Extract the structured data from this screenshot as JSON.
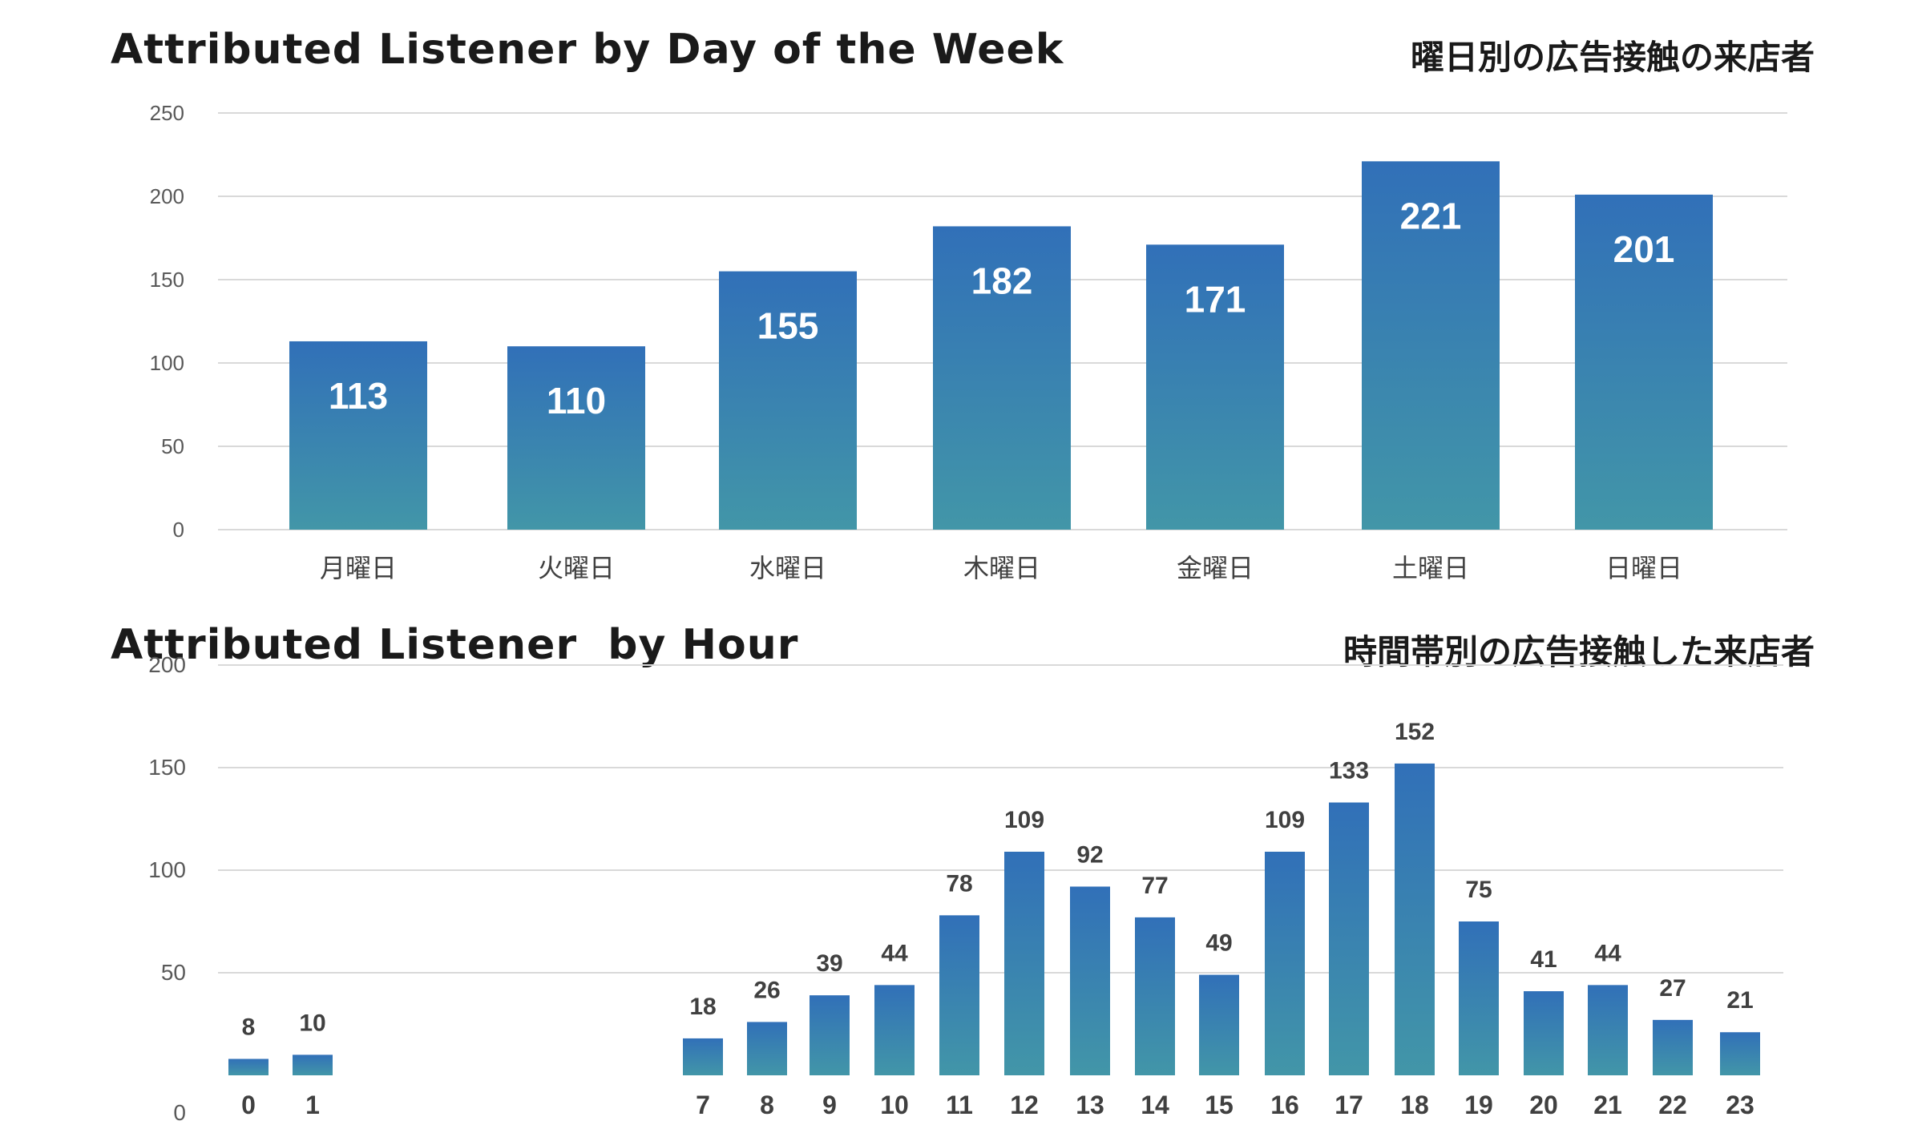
{
  "chart_data": [
    {
      "type": "bar",
      "title": "Attributed Listener by Day of the Week",
      "subtitle": "曜日別の広告接触の来店者",
      "categories": [
        "月曜日",
        "火曜日",
        "水曜日",
        "木曜日",
        "金曜日",
        "土曜日",
        "日曜日"
      ],
      "values": [
        113,
        110,
        155,
        182,
        171,
        221,
        201
      ],
      "yticks": [
        "0",
        "50",
        "100",
        "150",
        "200",
        "250"
      ],
      "ylim": [
        0,
        250
      ],
      "grid": true,
      "data_labels": "inside-top",
      "colors": {
        "bar_top": "#3170b8",
        "bar_bottom": "#4296a8",
        "grid": "#d9d9d9"
      }
    },
    {
      "type": "bar",
      "title": "Attributed Listener  by Hour",
      "subtitle": "時間帯別の広告接触した来店者",
      "categories": [
        "0",
        "1",
        "7",
        "8",
        "9",
        "10",
        "11",
        "12",
        "13",
        "14",
        "15",
        "16",
        "17",
        "18",
        "19",
        "20",
        "21",
        "22",
        "23"
      ],
      "values": [
        8,
        10,
        18,
        26,
        39,
        44,
        78,
        109,
        92,
        77,
        49,
        109,
        133,
        152,
        75,
        41,
        44,
        27,
        21
      ],
      "yticks": [
        "0",
        "50",
        "100",
        "150",
        "200"
      ],
      "ylim": [
        0,
        200
      ],
      "grid": true,
      "data_labels": "above",
      "colors": {
        "bar_top": "#3170b8",
        "bar_bottom": "#4296a8",
        "grid": "#d9d9d9"
      }
    }
  ]
}
